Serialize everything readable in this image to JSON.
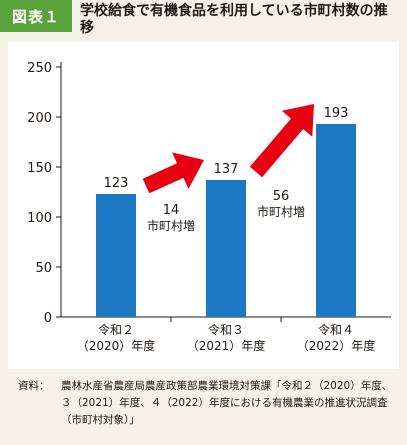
{
  "figure_label": "図表１",
  "title": "学校給食で有機食品を利用している市町村数の推移",
  "chart_data": {
    "type": "bar",
    "categories": [
      [
        "令和２",
        "（2020）年度"
      ],
      [
        "令和３",
        "（2021）年度"
      ],
      [
        "令和４",
        "（2022）年度"
      ]
    ],
    "values": [
      123,
      137,
      193
    ],
    "ylim": [
      0,
      250
    ],
    "yticks": [
      0,
      50,
      100,
      150,
      200,
      250
    ],
    "grid": false,
    "bar_color": "#1c78c2",
    "arrow_color": "#e60012",
    "annotations": [
      {
        "between": [
          0,
          1
        ],
        "value": "14",
        "label": "市町村増"
      },
      {
        "between": [
          1,
          2
        ],
        "value": "56",
        "label": "市町村増"
      }
    ]
  },
  "source": {
    "prefix": "資料：",
    "text": "農林水産省農産局農産政策部農業環境対策課「令和２（2020）年度、３（2021）年度、４（2022）年度における有機農業の推進状況調査（市町村対象）」"
  }
}
